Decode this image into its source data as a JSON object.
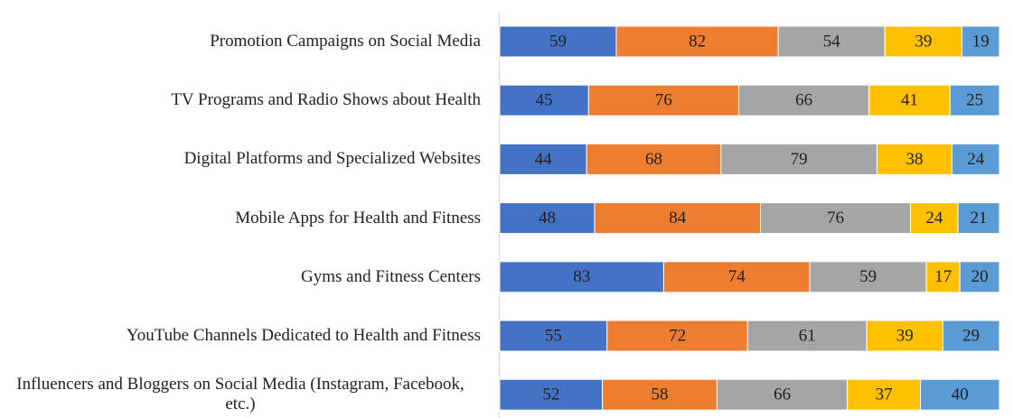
{
  "chart_data": {
    "type": "bar",
    "horizontal": true,
    "stacked": "percent",
    "categories": [
      "Promotion Campaigns on Social Media",
      "TV Programs and Radio Shows about Health",
      "Digital Platforms and Specialized Websites",
      "Mobile Apps for Health and Fitness",
      "Gyms and Fitness Centers",
      "YouTube Channels Dedicated to Health and Fitness",
      "Influencers and Bloggers on Social Media (Instagram, Facebook, etc.)"
    ],
    "series": [
      {
        "color": "#4472c4",
        "values": [
          59,
          45,
          44,
          48,
          83,
          55,
          52
        ]
      },
      {
        "color": "#ed7d31",
        "values": [
          82,
          76,
          68,
          84,
          74,
          72,
          58
        ]
      },
      {
        "color": "#a5a5a5",
        "values": [
          54,
          66,
          79,
          76,
          59,
          61,
          66
        ]
      },
      {
        "color": "#ffc000",
        "values": [
          39,
          41,
          38,
          24,
          17,
          39,
          37
        ]
      },
      {
        "color": "#5b9bd5",
        "values": [
          19,
          25,
          24,
          21,
          20,
          29,
          40
        ]
      }
    ]
  }
}
